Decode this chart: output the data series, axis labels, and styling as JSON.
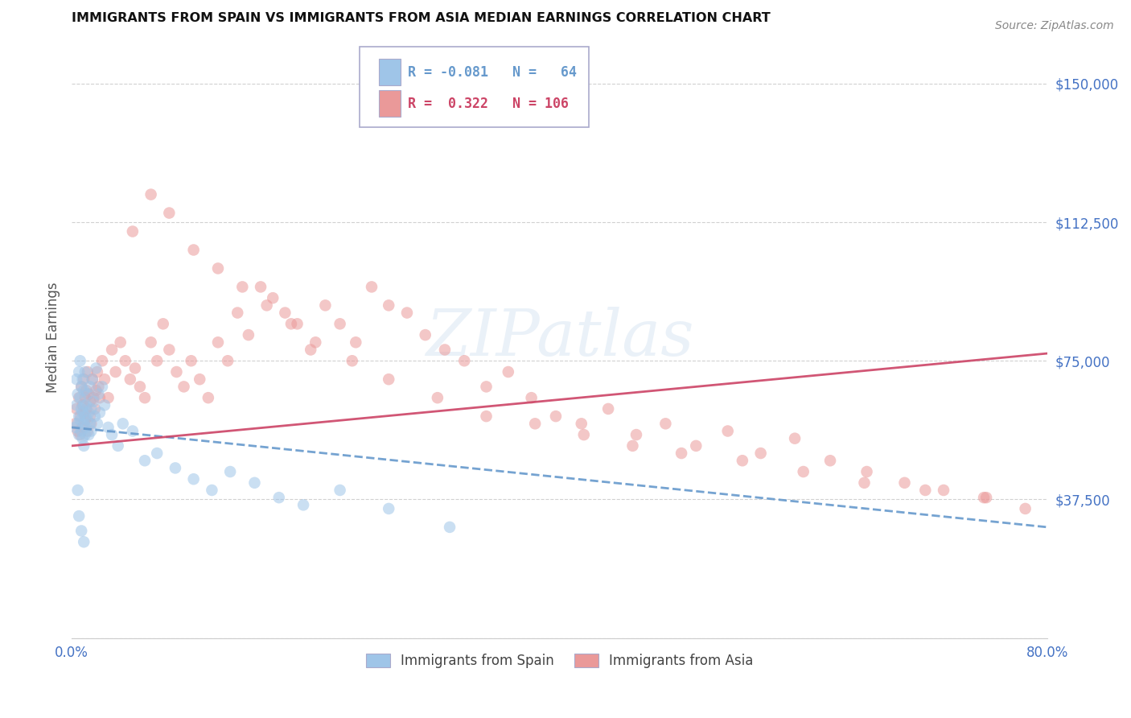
{
  "title": "IMMIGRANTS FROM SPAIN VS IMMIGRANTS FROM ASIA MEDIAN EARNINGS CORRELATION CHART",
  "source_text": "Source: ZipAtlas.com",
  "ylabel": "Median Earnings",
  "xlim": [
    0.0,
    0.8
  ],
  "ylim": [
    0,
    162500
  ],
  "yticks": [
    0,
    37500,
    75000,
    112500,
    150000
  ],
  "ytick_labels": [
    "",
    "$37,500",
    "$75,000",
    "$112,500",
    "$150,000"
  ],
  "xticks": [
    0.0,
    0.1,
    0.2,
    0.3,
    0.4,
    0.5,
    0.6,
    0.7,
    0.8
  ],
  "xtick_labels": [
    "0.0%",
    "",
    "",
    "",
    "",
    "",
    "",
    "",
    "80.0%"
  ],
  "color_spain": "#9fc5e8",
  "color_asia": "#ea9999",
  "color_trend_spain": "#6699cc",
  "color_trend_asia": "#cc4466",
  "color_axis_labels": "#4472c4",
  "color_grid": "#cccccc",
  "background_color": "#ffffff",
  "watermark_text": "ZIPatlas",
  "spain_trend_x0": 0.0,
  "spain_trend_y0": 57000,
  "spain_trend_x1": 0.8,
  "spain_trend_y1": 30000,
  "asia_trend_x0": 0.0,
  "asia_trend_y0": 52000,
  "asia_trend_x1": 0.8,
  "asia_trend_y1": 77000,
  "spain_x": [
    0.003,
    0.004,
    0.004,
    0.005,
    0.005,
    0.006,
    0.006,
    0.006,
    0.007,
    0.007,
    0.007,
    0.008,
    0.008,
    0.008,
    0.009,
    0.009,
    0.009,
    0.01,
    0.01,
    0.01,
    0.01,
    0.011,
    0.011,
    0.011,
    0.012,
    0.012,
    0.013,
    0.013,
    0.014,
    0.014,
    0.015,
    0.015,
    0.016,
    0.016,
    0.017,
    0.018,
    0.019,
    0.02,
    0.021,
    0.022,
    0.023,
    0.025,
    0.027,
    0.03,
    0.033,
    0.038,
    0.042,
    0.05,
    0.06,
    0.07,
    0.085,
    0.1,
    0.115,
    0.13,
    0.15,
    0.17,
    0.19,
    0.22,
    0.26,
    0.31,
    0.005,
    0.006,
    0.008,
    0.01
  ],
  "spain_y": [
    57000,
    63000,
    70000,
    58000,
    66000,
    72000,
    60000,
    55000,
    65000,
    59000,
    75000,
    62000,
    56000,
    68000,
    61000,
    54000,
    70000,
    58000,
    63000,
    52000,
    67000,
    60000,
    55000,
    72000,
    57000,
    63000,
    59000,
    66000,
    61000,
    55000,
    68000,
    58000,
    62000,
    56000,
    70000,
    64000,
    60000,
    73000,
    58000,
    66000,
    61000,
    68000,
    63000,
    57000,
    55000,
    52000,
    58000,
    56000,
    48000,
    50000,
    46000,
    43000,
    40000,
    45000,
    42000,
    38000,
    36000,
    40000,
    35000,
    30000,
    40000,
    33000,
    29000,
    26000
  ],
  "asia_x": [
    0.003,
    0.004,
    0.005,
    0.006,
    0.007,
    0.007,
    0.008,
    0.009,
    0.009,
    0.01,
    0.01,
    0.011,
    0.011,
    0.012,
    0.012,
    0.013,
    0.013,
    0.014,
    0.015,
    0.015,
    0.016,
    0.017,
    0.018,
    0.019,
    0.02,
    0.021,
    0.022,
    0.023,
    0.025,
    0.027,
    0.03,
    0.033,
    0.036,
    0.04,
    0.044,
    0.048,
    0.052,
    0.056,
    0.06,
    0.065,
    0.07,
    0.075,
    0.08,
    0.086,
    0.092,
    0.098,
    0.105,
    0.112,
    0.12,
    0.128,
    0.136,
    0.145,
    0.155,
    0.165,
    0.175,
    0.185,
    0.196,
    0.208,
    0.22,
    0.233,
    0.246,
    0.26,
    0.275,
    0.29,
    0.306,
    0.322,
    0.34,
    0.358,
    0.377,
    0.397,
    0.418,
    0.44,
    0.463,
    0.487,
    0.512,
    0.538,
    0.565,
    0.593,
    0.622,
    0.652,
    0.683,
    0.715,
    0.748,
    0.782,
    0.05,
    0.065,
    0.08,
    0.1,
    0.12,
    0.14,
    0.16,
    0.18,
    0.2,
    0.23,
    0.26,
    0.3,
    0.34,
    0.38,
    0.42,
    0.46,
    0.5,
    0.55,
    0.6,
    0.65,
    0.7,
    0.75
  ],
  "asia_y": [
    58000,
    62000,
    56000,
    65000,
    60000,
    55000,
    68000,
    63000,
    57000,
    61000,
    70000,
    65000,
    59000,
    67000,
    62000,
    56000,
    72000,
    66000,
    60000,
    64000,
    58000,
    70000,
    65000,
    62000,
    67000,
    72000,
    68000,
    65000,
    75000,
    70000,
    65000,
    78000,
    72000,
    80000,
    75000,
    70000,
    73000,
    68000,
    65000,
    80000,
    75000,
    85000,
    78000,
    72000,
    68000,
    75000,
    70000,
    65000,
    80000,
    75000,
    88000,
    82000,
    95000,
    92000,
    88000,
    85000,
    78000,
    90000,
    85000,
    80000,
    95000,
    90000,
    88000,
    82000,
    78000,
    75000,
    68000,
    72000,
    65000,
    60000,
    58000,
    62000,
    55000,
    58000,
    52000,
    56000,
    50000,
    54000,
    48000,
    45000,
    42000,
    40000,
    38000,
    35000,
    110000,
    120000,
    115000,
    105000,
    100000,
    95000,
    90000,
    85000,
    80000,
    75000,
    70000,
    65000,
    60000,
    58000,
    55000,
    52000,
    50000,
    48000,
    45000,
    42000,
    40000,
    38000
  ]
}
